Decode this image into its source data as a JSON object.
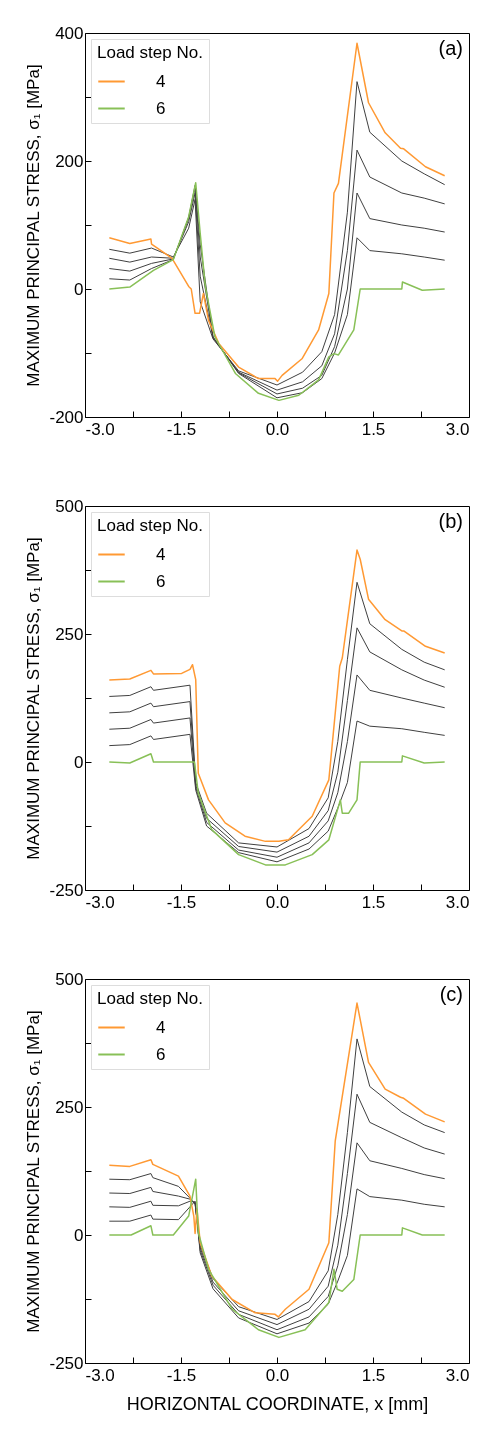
{
  "chart_data": [
    {
      "type": "line",
      "ylabel": "MAXIMUM PRINCIPAL STRESS, σ₁ [MPa]",
      "legend_title": "Load step No.",
      "legend": "top left",
      "grid": false,
      "annotations": [
        "(a)"
      ],
      "xlim": [
        -3,
        3
      ],
      "xticks": [
        {
          "value": -3,
          "label": "-3.0"
        },
        {
          "value": -2.25,
          "label": null
        },
        {
          "value": -1.5,
          "label": "-1.5"
        },
        {
          "value": -0.75,
          "label": null
        },
        {
          "value": 0,
          "label": "0.0"
        },
        {
          "value": 0.75,
          "label": null
        },
        {
          "value": 1.5,
          "label": "1.5"
        },
        {
          "value": 2.25,
          "label": null
        },
        {
          "value": 3,
          "label": "3.0"
        }
      ],
      "ylim": [
        -200,
        400
      ],
      "yticks": [
        -200,
        {
          "value": -100,
          "label": null
        },
        0,
        {
          "value": 100,
          "label": null
        },
        200,
        {
          "value": 300,
          "label": null
        },
        400
      ],
      "series": [
        {
          "color": "#404040",
          "x": [
            -2.62,
            -2.3,
            -1.96,
            -1.62,
            -1.38,
            -1.28,
            -1.2,
            -1.0,
            -0.6,
            0,
            0.4,
            0.7,
            0.9,
            1.1,
            1.25,
            1.45,
            1.95,
            2.3,
            2.62
          ],
          "values": [
            62,
            56,
            64,
            50,
            95,
            140,
            -20,
            -78,
            -128,
            -150,
            -130,
            -98,
            -40,
            120,
            324,
            245,
            200,
            180,
            163
          ]
        },
        {
          "color": "#404040",
          "x": [
            -2.62,
            -2.3,
            -1.96,
            -1.62,
            -1.38,
            -1.28,
            -1.2,
            -1.0,
            -0.6,
            0,
            0.4,
            0.7,
            0.9,
            1.1,
            1.25,
            1.45,
            1.95,
            2.3,
            2.62
          ],
          "values": [
            48,
            42,
            50,
            48,
            105,
            150,
            20,
            -76,
            -130,
            -158,
            -145,
            -120,
            -70,
            60,
            217,
            175,
            150,
            142,
            133
          ]
        },
        {
          "color": "#404040",
          "x": [
            -2.62,
            -2.3,
            -1.96,
            -1.62,
            -1.38,
            -1.28,
            -1.2,
            -1.0,
            -0.6,
            0,
            0.4,
            0.7,
            0.9,
            1.1,
            1.25,
            1.45,
            1.95,
            2.3,
            2.62
          ],
          "values": [
            32,
            28,
            40,
            47,
            110,
            158,
            50,
            -75,
            -131,
            -164,
            -155,
            -135,
            -90,
            0,
            150,
            110,
            100,
            95,
            89
          ]
        },
        {
          "color": "#404040",
          "x": [
            -2.62,
            -2.3,
            -1.96,
            -1.62,
            -1.38,
            -1.28,
            -1.2,
            -1.0,
            -0.6,
            0,
            0.4,
            0.7,
            0.9,
            1.1,
            1.25,
            1.45,
            1.95,
            2.3,
            2.62
          ],
          "values": [
            16,
            14,
            32,
            46,
            112,
            162,
            70,
            -75,
            -132,
            -170,
            -162,
            -140,
            -100,
            -40,
            80,
            60,
            55,
            50,
            45
          ]
        },
        {
          "name": "4",
          "color": "#ff9933",
          "x": [
            -2.62,
            -2.3,
            -1.97,
            -1.96,
            -1.64,
            -1.38,
            -1.34,
            -1.28,
            -1.21,
            -1.15,
            -1.07,
            -0.91,
            -0.6,
            -0.29,
            -0.03,
            0.01,
            0.08,
            0.39,
            0.65,
            0.81,
            0.89,
            0.96,
            1.25,
            1.43,
            1.69,
            1.93,
            1.98,
            2.32,
            2.62
          ],
          "values": [
            80,
            71,
            78,
            70,
            48,
            4,
            0,
            -38,
            -38,
            -7,
            -49,
            -85,
            -122,
            -140,
            -140,
            -144,
            -135,
            -109,
            -64,
            -7,
            150,
            165,
            384,
            291,
            244,
            220,
            219,
            191,
            177
          ]
        },
        {
          "name": "6",
          "color": "#88c057",
          "x": [
            -2.62,
            -2.3,
            -1.93,
            -1.62,
            -1.38,
            -1.27,
            -1.2,
            -1.12,
            -0.97,
            -0.65,
            -0.29,
            0.03,
            0.34,
            0.65,
            0.81,
            0.89,
            0.96,
            1.2,
            1.3,
            1.95,
            1.96,
            2.27,
            2.62
          ],
          "values": [
            0,
            3,
            29,
            46,
            113,
            166,
            87,
            4,
            -75,
            -132,
            -163,
            -174,
            -166,
            -142,
            -106,
            -101,
            -103,
            -64,
            0,
            0,
            11,
            -2,
            0
          ]
        }
      ]
    },
    {
      "type": "line",
      "ylabel": "MAXIMUM PRINCIPAL STRESS, σ₁ [MPa]",
      "legend_title": "Load step No.",
      "legend": "top left",
      "grid": false,
      "annotations": [
        "(b)"
      ],
      "xlim": [
        -3,
        3
      ],
      "xticks": [
        {
          "value": -3,
          "label": "-3.0"
        },
        {
          "value": -2.25,
          "label": null
        },
        {
          "value": -1.5,
          "label": "-1.5"
        },
        {
          "value": -0.75,
          "label": null
        },
        {
          "value": 0,
          "label": "0.0"
        },
        {
          "value": 0.75,
          "label": null
        },
        {
          "value": 1.5,
          "label": "1.5"
        },
        {
          "value": 2.25,
          "label": null
        },
        {
          "value": 3,
          "label": "3.0"
        }
      ],
      "ylim": [
        -250,
        500
      ],
      "yticks": [
        -250,
        {
          "value": -125,
          "label": null
        },
        0,
        {
          "value": 125,
          "label": null
        },
        250,
        {
          "value": 375,
          "label": null
        },
        500
      ],
      "series": [
        {
          "color": "#404040",
          "x": [
            -2.62,
            -2.3,
            -1.97,
            -1.93,
            -1.36,
            -1.27,
            -1.1,
            -0.6,
            0,
            0.5,
            0.8,
            0.95,
            1.1,
            1.25,
            1.45,
            1.95,
            2.3,
            2.62
          ],
          "values": [
            128,
            130,
            147,
            140,
            150,
            -40,
            -100,
            -158,
            -166,
            -130,
            -70,
            40,
            200,
            351,
            270,
            220,
            195,
            180
          ]
        },
        {
          "color": "#404040",
          "x": [
            -2.62,
            -2.3,
            -1.97,
            -1.93,
            -1.36,
            -1.27,
            -1.1,
            -0.6,
            0,
            0.5,
            0.8,
            0.95,
            1.1,
            1.25,
            1.45,
            1.95,
            2.3,
            2.62
          ],
          "values": [
            96,
            98,
            115,
            108,
            118,
            -45,
            -110,
            -165,
            -176,
            -145,
            -95,
            -20,
            120,
            262,
            215,
            180,
            160,
            146
          ]
        },
        {
          "color": "#404040",
          "x": [
            -2.62,
            -2.3,
            -1.97,
            -1.93,
            -1.36,
            -1.27,
            -1.1,
            -0.6,
            0,
            0.5,
            0.8,
            0.95,
            1.1,
            1.25,
            1.45,
            1.95,
            2.3,
            2.62
          ],
          "values": [
            64,
            66,
            83,
            76,
            86,
            -50,
            -118,
            -172,
            -186,
            -158,
            -115,
            -60,
            40,
            170,
            140,
            125,
            115,
            106
          ]
        },
        {
          "color": "#404040",
          "x": [
            -2.62,
            -2.3,
            -1.97,
            -1.93,
            -1.36,
            -1.27,
            -1.1,
            -0.6,
            0,
            0.5,
            0.8,
            0.95,
            1.1,
            1.25,
            1.45,
            1.95,
            2.3,
            2.62
          ],
          "values": [
            32,
            34,
            51,
            44,
            54,
            -55,
            -125,
            -177,
            -195,
            -170,
            -135,
            -90,
            -40,
            80,
            70,
            65,
            58,
            52
          ]
        },
        {
          "name": "4",
          "color": "#ff9933",
          "x": [
            -2.62,
            -2.3,
            -1.97,
            -1.93,
            -1.49,
            -1.36,
            -1.32,
            -1.27,
            -1.23,
            -1.07,
            -0.81,
            -0.5,
            -0.18,
            0.03,
            0.18,
            0.55,
            0.81,
            0.98,
            1.02,
            1.25,
            1.3,
            1.43,
            1.69,
            1.95,
            1.98,
            2.32,
            2.62
          ],
          "values": [
            160,
            162,
            179,
            172,
            173,
            181,
            190,
            161,
            -22,
            -74,
            -119,
            -145,
            -155,
            -155,
            -152,
            -106,
            -35,
            187,
            203,
            414,
            396,
            318,
            278,
            256,
            256,
            226,
            213
          ]
        },
        {
          "name": "6",
          "color": "#88c057",
          "x": [
            -2.62,
            -2.3,
            -1.97,
            -1.93,
            -1.29,
            -1.23,
            -1.02,
            -0.6,
            -0.18,
            0.13,
            0.55,
            0.81,
            0.99,
            1.02,
            1.12,
            1.25,
            1.3,
            1.95,
            1.96,
            2.3,
            2.62
          ],
          "values": [
            0,
            -2,
            16,
            0,
            0,
            -61,
            -132,
            -181,
            -201,
            -201,
            -181,
            -152,
            -74,
            -100,
            -100,
            -74,
            0,
            0,
            12,
            -2,
            0
          ]
        }
      ]
    },
    {
      "type": "line",
      "xlabel": "HORIZONTAL COORDINATE, x [mm]",
      "ylabel": "MAXIMUM PRINCIPAL STRESS, σ₁ [MPa]",
      "legend_title": "Load step No.",
      "legend": "top left",
      "grid": false,
      "annotations": [
        "(c)"
      ],
      "xlim": [
        -3,
        3
      ],
      "xticks": [
        {
          "value": -3,
          "label": "-3.0"
        },
        {
          "value": -2.25,
          "label": null
        },
        {
          "value": -1.5,
          "label": "-1.5"
        },
        {
          "value": -0.75,
          "label": null
        },
        {
          "value": 0,
          "label": "0.0"
        },
        {
          "value": 0.75,
          "label": null
        },
        {
          "value": 1.5,
          "label": "1.5"
        },
        {
          "value": 2.25,
          "label": null
        },
        {
          "value": 3,
          "label": "3.0"
        }
      ],
      "ylim": [
        -250,
        500
      ],
      "yticks": [
        -250,
        {
          "value": -125,
          "label": null
        },
        0,
        {
          "value": 125,
          "label": null
        },
        250,
        {
          "value": 375,
          "label": null
        },
        500
      ],
      "series": [
        {
          "color": "#404040",
          "x": [
            -2.62,
            -2.3,
            -1.97,
            -1.94,
            -1.54,
            -1.36,
            -1.28,
            -1.2,
            -1.0,
            -0.6,
            0,
            0.5,
            0.8,
            0.95,
            1.1,
            1.25,
            1.45,
            1.95,
            2.3,
            2.62
          ],
          "values": [
            109,
            108,
            120,
            112,
            95,
            72,
            60,
            -20,
            -85,
            -140,
            -165,
            -130,
            -70,
            40,
            200,
            383,
            290,
            240,
            215,
            200
          ]
        },
        {
          "color": "#404040",
          "x": [
            -2.62,
            -2.3,
            -1.97,
            -1.94,
            -1.54,
            -1.36,
            -1.28,
            -1.2,
            -1.0,
            -0.6,
            0,
            0.5,
            0.8,
            0.95,
            1.1,
            1.25,
            1.45,
            1.95,
            2.3,
            2.62
          ],
          "values": [
            82,
            81,
            93,
            85,
            76,
            70,
            62,
            -25,
            -92,
            -148,
            -175,
            -145,
            -100,
            -20,
            120,
            275,
            220,
            190,
            170,
            158
          ]
        },
        {
          "color": "#404040",
          "x": [
            -2.62,
            -2.3,
            -1.97,
            -1.94,
            -1.54,
            -1.36,
            -1.28,
            -1.2,
            -1.0,
            -0.6,
            0,
            0.5,
            0.8,
            0.95,
            1.1,
            1.25,
            1.45,
            1.95,
            2.3,
            2.62
          ],
          "values": [
            55,
            54,
            66,
            58,
            57,
            66,
            64,
            -30,
            -98,
            -155,
            -185,
            -160,
            -120,
            -60,
            40,
            180,
            145,
            130,
            118,
            110
          ]
        },
        {
          "color": "#404040",
          "x": [
            -2.62,
            -2.3,
            -1.97,
            -1.94,
            -1.54,
            -1.36,
            -1.28,
            -1.2,
            -1.0,
            -0.6,
            0,
            0.5,
            0.8,
            0.95,
            1.1,
            1.25,
            1.45,
            1.95,
            2.3,
            2.62
          ],
          "values": [
            27,
            27,
            39,
            31,
            30,
            55,
            66,
            -35,
            -105,
            -162,
            -193,
            -172,
            -135,
            -90,
            -40,
            90,
            75,
            68,
            60,
            55
          ]
        },
        {
          "name": "4",
          "color": "#ff9933",
          "x": [
            -2.62,
            -2.3,
            -1.97,
            -1.94,
            -1.54,
            -1.36,
            -1.3,
            -1.28,
            -1.25,
            -1.2,
            -1.02,
            -0.7,
            -0.34,
            -0.03,
            0.02,
            0.13,
            0.5,
            0.81,
            0.91,
            1.25,
            1.43,
            1.69,
            1.93,
            1.98,
            2.32,
            2.62
          ],
          "values": [
            136,
            134,
            147,
            138,
            115,
            76,
            37,
            3,
            50,
            -15,
            -80,
            -126,
            -152,
            -155,
            -160,
            -145,
            -106,
            -15,
            184,
            453,
            337,
            285,
            269,
            267,
            236,
            221
          ]
        },
        {
          "name": "6",
          "color": "#88c057",
          "x": [
            -2.62,
            -2.28,
            -1.97,
            -1.94,
            -1.62,
            -1.38,
            -1.27,
            -1.23,
            -1.07,
            -0.7,
            -0.29,
            0.03,
            0.44,
            0.81,
            0.89,
            0.94,
            1.02,
            1.2,
            1.3,
            1.95,
            1.96,
            2.27,
            2.62
          ],
          "values": [
            0,
            0,
            18,
            0,
            0,
            37,
            109,
            5,
            -67,
            -145,
            -185,
            -200,
            -185,
            -132,
            -67,
            -106,
            -110,
            -87,
            0,
            0,
            14,
            0,
            0
          ]
        }
      ]
    }
  ]
}
